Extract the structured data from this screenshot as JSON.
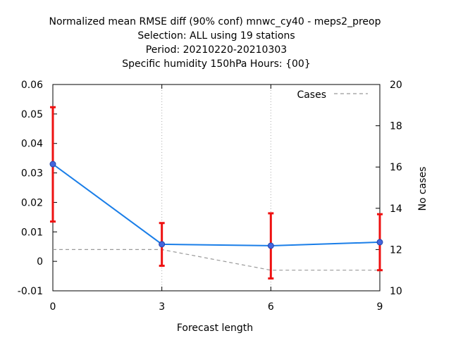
{
  "chart_data": {
    "type": "line",
    "title_lines": [
      "Normalized mean RMSE diff (90% conf) mnwc_cy40 - meps2_preop",
      "Selection: ALL using    19 stations",
      "Period: 20210220-20210303",
      "Specific humidity 150hPa  Hours: {00}"
    ],
    "xlabel": "Forecast length",
    "ylabel": "",
    "y2label": "No cases",
    "x": [
      0,
      3,
      6,
      9
    ],
    "xlim": [
      0,
      9
    ],
    "ylim": [
      -0.01,
      0.06
    ],
    "y2lim": [
      10,
      20
    ],
    "x_ticks": [
      "0",
      "3",
      "6",
      "9"
    ],
    "y_ticks": [
      "-0.01",
      "0",
      "0.01",
      "0.02",
      "0.03",
      "0.04",
      "0.05",
      "0.06"
    ],
    "y2_ticks": [
      "10",
      "12",
      "14",
      "16",
      "18",
      "20"
    ],
    "grid": true,
    "legend_position": "top-right",
    "series": [
      {
        "values": [
          0.033,
          0.0058,
          0.0053,
          0.0065
        ],
        "err_low": [
          0.0135,
          -0.0015,
          -0.0058,
          -0.003
        ],
        "err_high": [
          0.0523,
          0.013,
          0.0163,
          0.016
        ],
        "color": "#1a7ee8",
        "axis": "left"
      },
      {
        "name": "Cases",
        "values": [
          12,
          12,
          11,
          11
        ],
        "color": "#999999",
        "style": "dashed",
        "axis": "right"
      }
    ],
    "errorbar_color": "#ee1111"
  }
}
